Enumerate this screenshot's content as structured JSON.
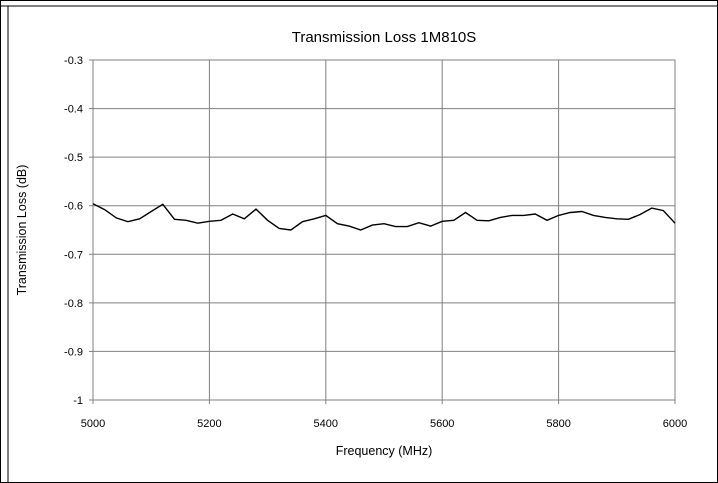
{
  "chart_data": {
    "type": "line",
    "title": "Transmission Loss 1M810S",
    "xlabel": "Frequency (MHz)",
    "ylabel": "Transmission Loss (dB)",
    "xlim": [
      5000,
      6000
    ],
    "ylim": [
      -1,
      -0.3
    ],
    "x_ticks": [
      5000,
      5200,
      5400,
      5600,
      5800,
      6000
    ],
    "y_ticks": [
      -0.3,
      -0.4,
      -0.5,
      -0.6,
      -0.7,
      -0.8,
      -0.9,
      -1
    ],
    "x_tick_labels": [
      "5000",
      "5200",
      "5400",
      "5600",
      "5800",
      "6000"
    ],
    "y_tick_labels": [
      "-0.3",
      "-0.4",
      "-0.5",
      "-0.6",
      "-0.7",
      "-0.8",
      "-0.9",
      "-1"
    ],
    "grid": true,
    "legend": "none",
    "line_color": "#000000",
    "series": [
      {
        "x": [
          5000,
          5020,
          5040,
          5060,
          5080,
          5100,
          5120,
          5140,
          5160,
          5180,
          5200,
          5220,
          5240,
          5260,
          5280,
          5300,
          5320,
          5340,
          5360,
          5380,
          5400,
          5420,
          5440,
          5460,
          5480,
          5500,
          5520,
          5540,
          5560,
          5580,
          5600,
          5620,
          5640,
          5660,
          5680,
          5700,
          5720,
          5740,
          5760,
          5780,
          5800,
          5820,
          5840,
          5860,
          5880,
          5900,
          5920,
          5940,
          5960,
          5980,
          6000
        ],
        "y": [
          -0.596,
          -0.608,
          -0.625,
          -0.633,
          -0.627,
          -0.612,
          -0.597,
          -0.628,
          -0.63,
          -0.636,
          -0.632,
          -0.63,
          -0.617,
          -0.627,
          -0.607,
          -0.63,
          -0.647,
          -0.65,
          -0.633,
          -0.627,
          -0.62,
          -0.637,
          -0.642,
          -0.65,
          -0.64,
          -0.637,
          -0.643,
          -0.643,
          -0.635,
          -0.642,
          -0.632,
          -0.63,
          -0.614,
          -0.63,
          -0.631,
          -0.624,
          -0.62,
          -0.62,
          -0.617,
          -0.63,
          -0.62,
          -0.614,
          -0.612,
          -0.62,
          -0.624,
          -0.627,
          -0.628,
          -0.618,
          -0.605,
          -0.61,
          -0.636
        ]
      }
    ]
  }
}
